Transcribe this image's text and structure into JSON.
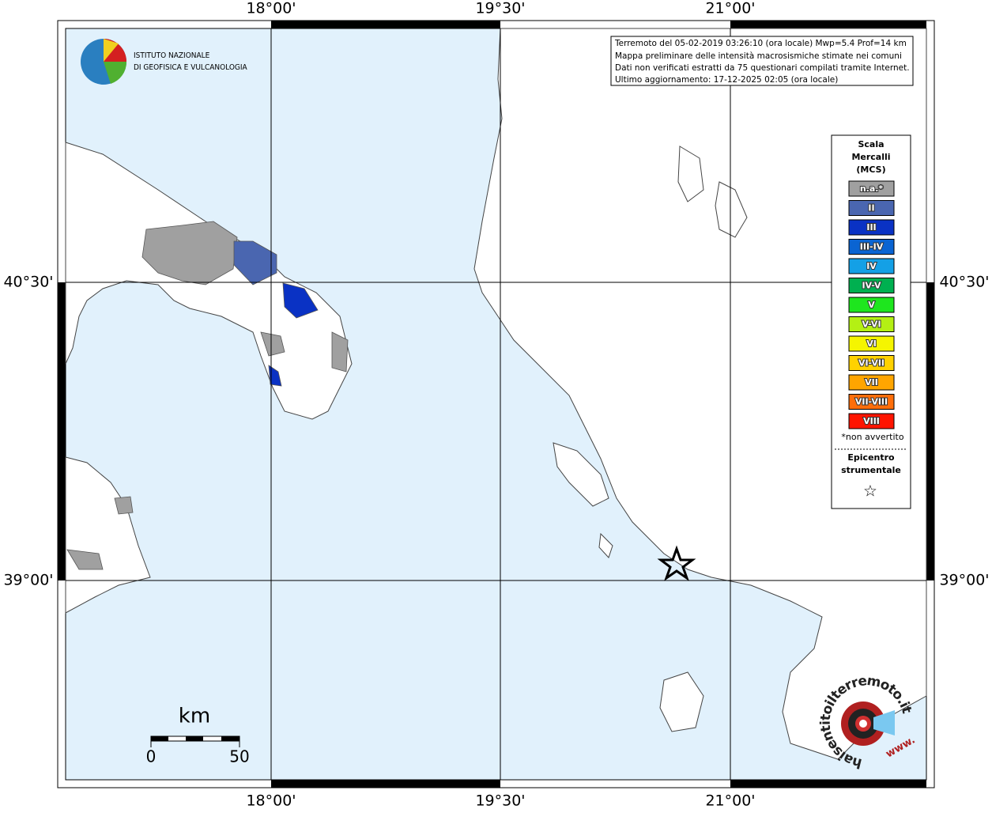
{
  "graticule": {
    "top": [
      "18°00'",
      "19°30'",
      "21°00'"
    ],
    "bottom": [
      "18°00'",
      "19°30'",
      "21°00'"
    ],
    "left": [
      "40°30'",
      "39°00'"
    ],
    "right": [
      "40°30'",
      "39°00'"
    ]
  },
  "logo": {
    "line1": "ISTITUTO NAZIONALE",
    "line2": "DI GEOFISICA E VULCANOLOGIA"
  },
  "info": [
    "Terremoto del 05-02-2019 03:26:10 (ora locale) Mwp=5.4 Prof=14 km",
    "Mappa preliminare delle intensità macrosismiche stimate nei comuni",
    "Dati non verificati estratti da 75 questionari compilati tramite Internet.",
    "Ultimo aggiornamento: 17-12-2025 02:05 (ora locale)"
  ],
  "legend": {
    "title": [
      "Scala",
      "Mercalli",
      "(MCS)"
    ],
    "items": [
      {
        "label": "n.a.*",
        "color": "#a0a0a0"
      },
      {
        "label": "II",
        "color": "#4a66b0"
      },
      {
        "label": "III",
        "color": "#0a32c4"
      },
      {
        "label": "III-IV",
        "color": "#0a64d2"
      },
      {
        "label": "IV",
        "color": "#14a0e6"
      },
      {
        "label": "IV-V",
        "color": "#00b050"
      },
      {
        "label": "V",
        "color": "#1ee61e"
      },
      {
        "label": "V-VI",
        "color": "#b4f014"
      },
      {
        "label": "VI",
        "color": "#f5f500"
      },
      {
        "label": "VI-VII",
        "color": "#ffd200"
      },
      {
        "label": "VII",
        "color": "#ffa500"
      },
      {
        "label": "VII-VIII",
        "color": "#ff6e0a"
      },
      {
        "label": "VIII",
        "color": "#ff1400"
      }
    ],
    "note": "*non avvertito",
    "epicenter": [
      "Epicentro",
      "strumentale"
    ],
    "star": "☆"
  },
  "scale": {
    "unit": "km",
    "min": "0",
    "max": "50"
  },
  "watermark": {
    "name": "haisentitoilterremoto.it",
    "prefix": "www."
  }
}
